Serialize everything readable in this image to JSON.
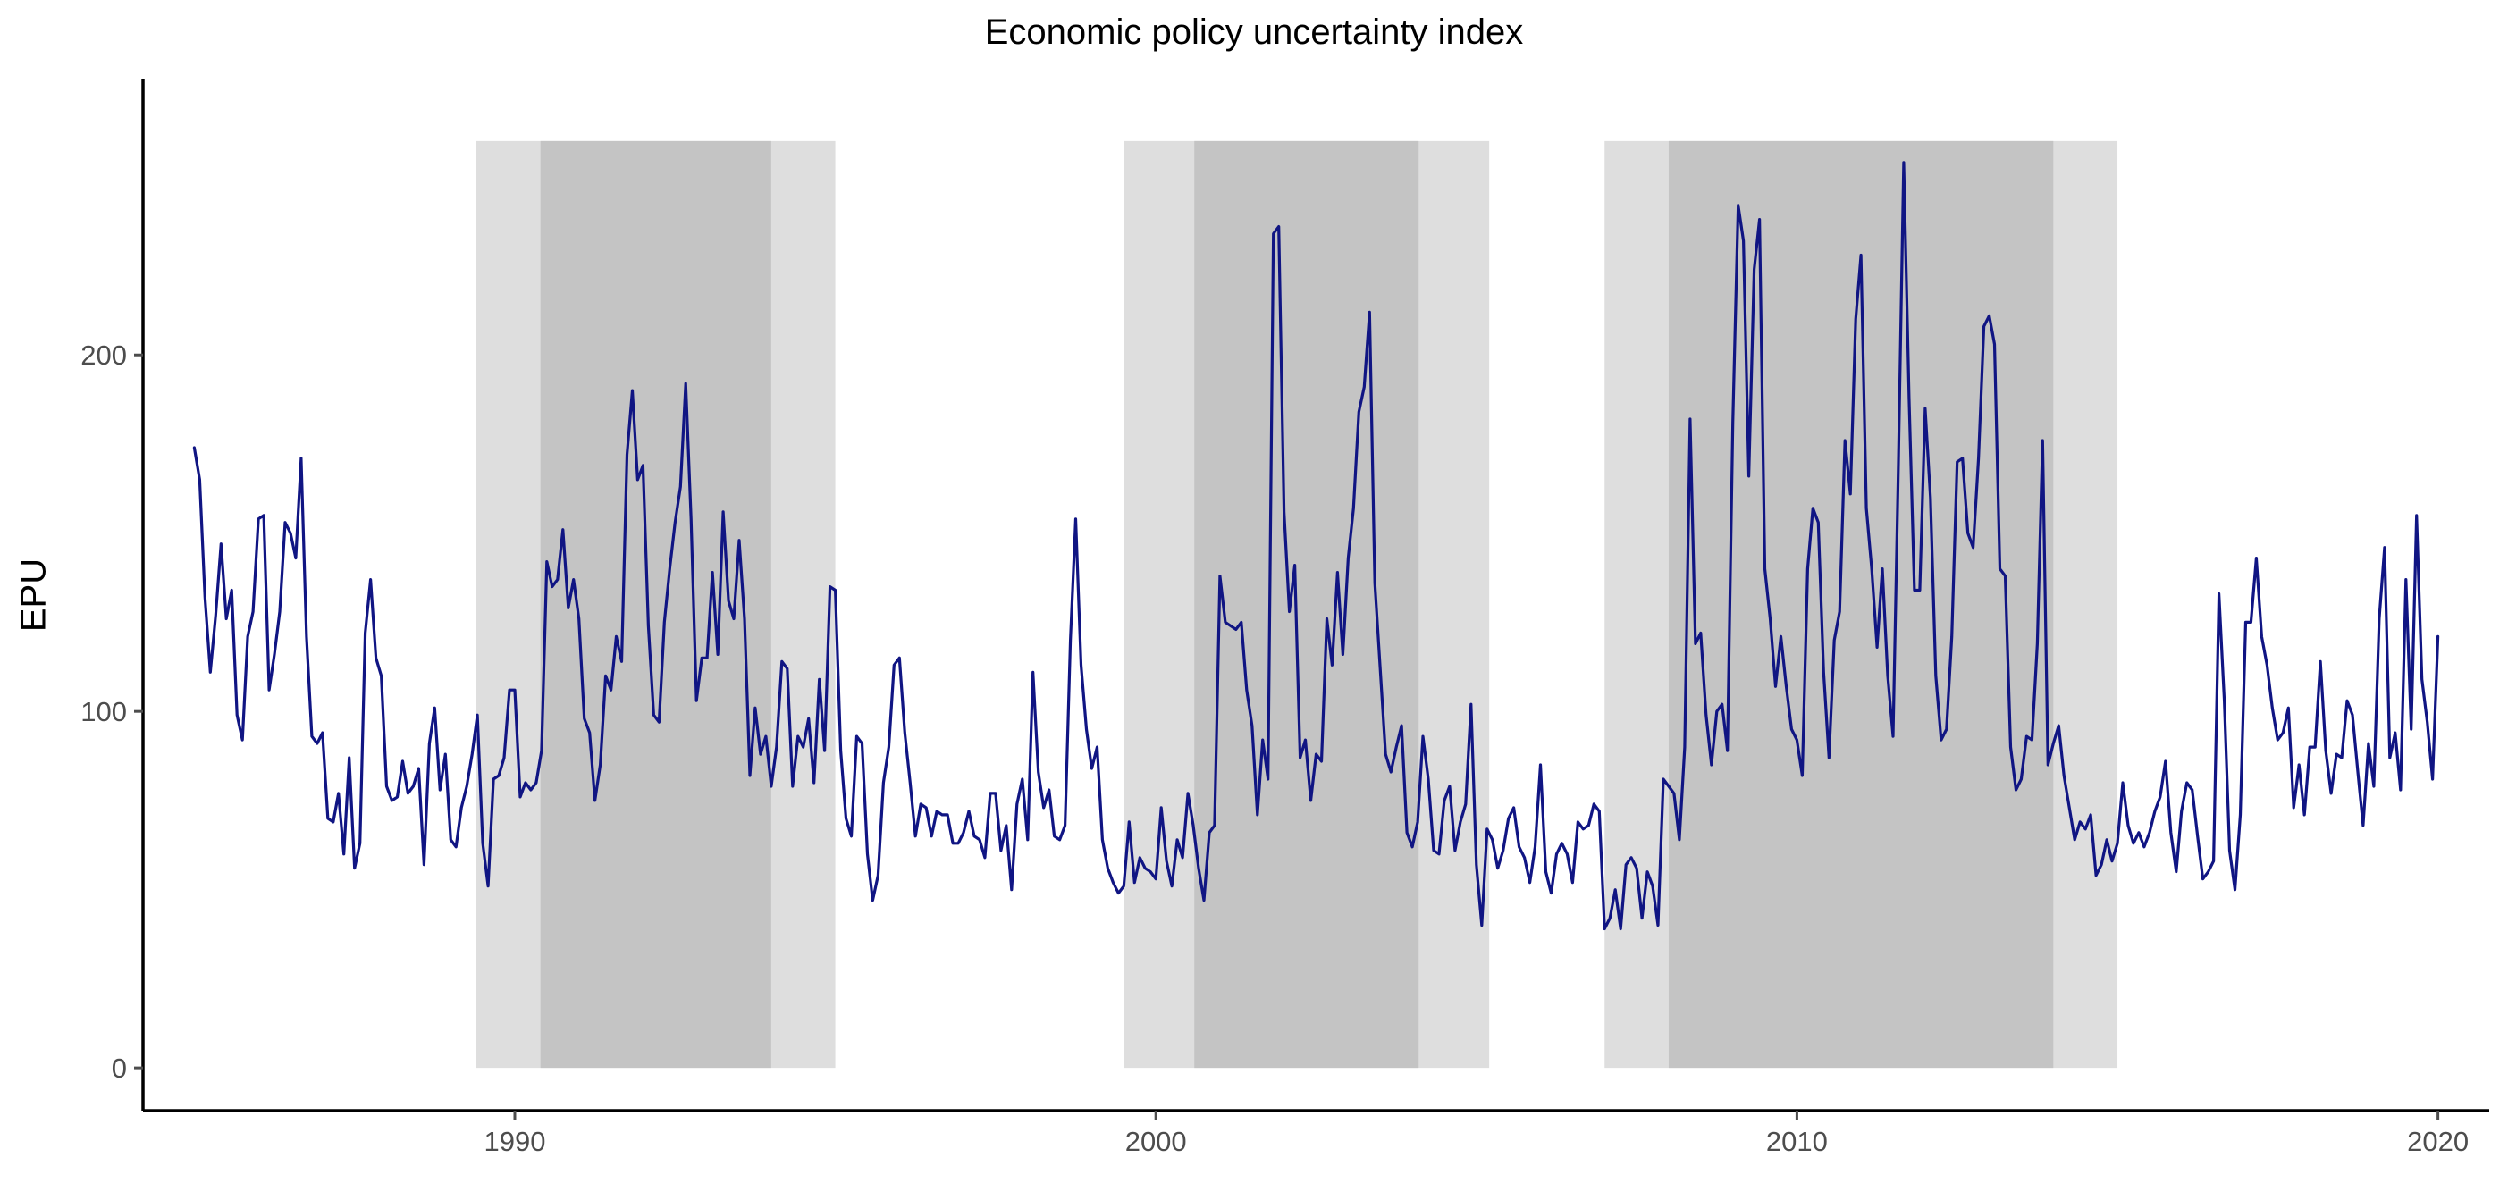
{
  "chart_data": {
    "type": "line",
    "title": "Economic policy uncertainty index",
    "xlabel": "",
    "ylabel": "EPU",
    "xlim": [
      1984.2,
      2020.8
    ],
    "ylim": [
      -12,
      272
    ],
    "x_ticks": [
      1990,
      2000,
      2010,
      2020
    ],
    "y_ticks": [
      0,
      100,
      200
    ],
    "grid": false,
    "legend": "none",
    "colors": {
      "line": "#101583",
      "band_outer": "#dedede",
      "band_inner": "#c4c4c4",
      "axis": "#000000",
      "tick_label": "#4d4d4d"
    },
    "shaded_periods": [
      {
        "outer": [
          1989.4,
          1995.0
        ],
        "inner": [
          1990.4,
          1994.0
        ],
        "ymax": 260
      },
      {
        "outer": [
          1999.5,
          2005.2
        ],
        "inner": [
          2000.6,
          2004.1
        ],
        "ymax": 260
      },
      {
        "outer": [
          2007.0,
          2015.0
        ],
        "inner": [
          2008.0,
          2014.0
        ],
        "ymax": 260
      }
    ],
    "series": [
      {
        "start": 1985.0,
        "step": 0.0833333,
        "values": [
          174,
          165,
          132,
          111,
          127,
          147,
          126,
          134,
          99,
          92,
          121,
          128,
          154,
          155,
          106,
          116,
          128,
          153,
          150,
          143,
          171,
          121,
          93,
          91,
          94,
          70,
          69,
          77,
          60,
          87,
          56,
          63,
          122,
          137,
          115,
          110,
          79,
          75,
          76,
          86,
          77,
          79,
          84,
          57,
          91,
          101,
          78,
          88,
          64,
          62,
          73,
          79,
          88,
          99,
          63,
          51,
          81,
          82,
          87,
          106,
          106,
          76,
          80,
          78,
          80,
          89,
          142,
          135,
          137,
          151,
          129,
          137,
          126,
          98,
          94,
          75,
          85,
          110,
          106,
          121,
          114,
          172,
          190,
          165,
          169,
          124,
          99,
          97,
          125,
          140,
          153,
          163,
          192,
          154,
          103,
          115,
          115,
          139,
          116,
          156,
          131,
          126,
          148,
          126,
          82,
          101,
          88,
          93,
          79,
          90,
          114,
          112,
          79,
          93,
          90,
          98,
          80,
          109,
          89,
          135,
          134,
          89,
          70,
          65,
          93,
          91,
          60,
          47,
          54,
          80,
          90,
          113,
          115,
          94,
          80,
          65,
          74,
          73,
          65,
          72,
          71,
          71,
          63,
          63,
          66,
          72,
          65,
          64,
          59,
          77,
          77,
          61,
          68,
          50,
          74,
          81,
          64,
          111,
          83,
          73,
          78,
          65,
          64,
          68,
          120,
          154,
          113,
          95,
          84,
          90,
          64,
          56,
          52,
          49,
          51,
          69,
          52,
          59,
          56,
          55,
          53,
          73,
          58,
          51,
          64,
          59,
          77,
          68,
          56,
          47,
          66,
          68,
          138,
          125,
          124,
          123,
          125,
          106,
          96,
          71,
          92,
          81,
          234,
          236,
          156,
          128,
          141,
          87,
          92,
          75,
          88,
          86,
          126,
          113,
          139,
          116,
          143,
          157,
          184,
          191,
          212,
          136,
          112,
          88,
          83,
          90,
          96,
          66,
          62,
          69,
          93,
          81,
          61,
          60,
          75,
          79,
          61,
          69,
          74,
          102,
          57,
          40,
          67,
          64,
          56,
          61,
          70,
          73,
          62,
          59,
          52,
          62,
          85,
          55,
          49,
          60,
          63,
          60,
          52,
          69,
          67,
          68,
          74,
          72,
          39,
          42,
          50,
          39,
          57,
          59,
          56,
          42,
          55,
          51,
          40,
          81,
          79,
          77,
          64,
          90,
          182,
          119,
          122,
          99,
          85,
          100,
          102,
          89,
          181,
          242,
          232,
          166,
          224,
          238,
          140,
          126,
          107,
          121,
          107,
          95,
          92,
          82,
          140,
          157,
          153,
          111,
          87,
          120,
          128,
          176,
          161,
          210,
          228,
          157,
          140,
          118,
          140,
          110,
          93,
          170,
          254,
          188,
          134,
          134,
          185,
          160,
          110,
          92,
          95,
          121,
          170,
          171,
          150,
          146,
          171,
          208,
          211,
          203,
          140,
          138,
          90,
          78,
          81,
          93,
          92,
          119,
          176,
          85,
          91,
          96,
          82,
          73,
          64,
          69,
          67,
          71,
          54,
          57,
          64,
          58,
          63,
          80,
          68,
          63,
          66,
          62,
          66,
          72,
          76,
          86,
          66,
          55,
          72,
          80,
          78,
          65,
          53,
          55,
          58,
          133,
          103,
          61,
          50,
          71,
          125,
          125,
          143,
          121,
          113,
          101,
          92,
          94,
          101,
          73,
          85,
          71,
          90,
          90,
          114,
          89,
          77,
          88,
          87,
          103,
          99,
          83,
          68,
          91,
          79,
          126,
          146,
          87,
          94,
          78,
          137,
          95,
          155,
          109,
          97,
          81,
          121
        ]
      }
    ]
  }
}
